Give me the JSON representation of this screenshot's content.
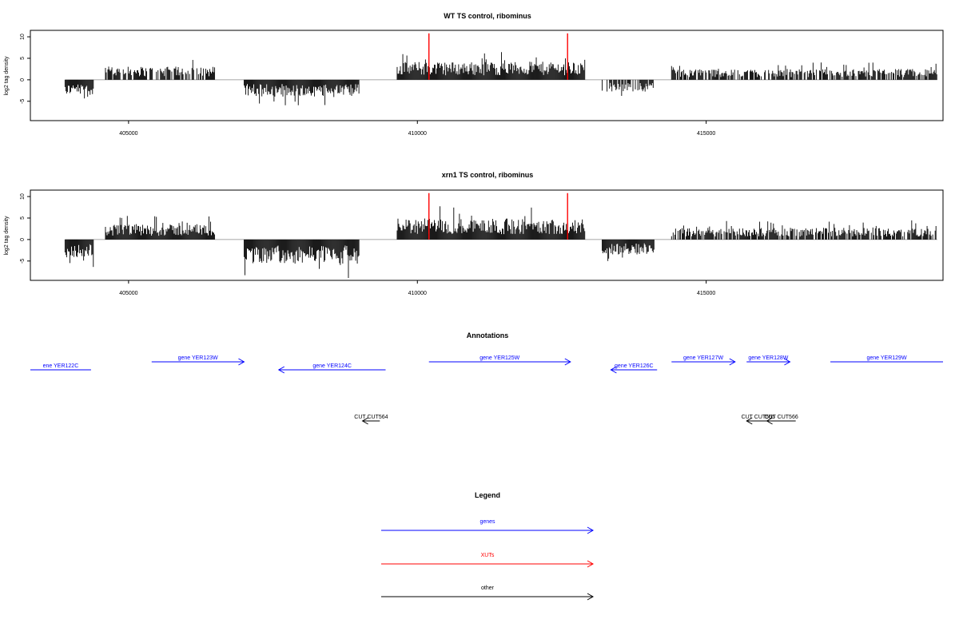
{
  "chart_data": [
    {
      "type": "bar",
      "title": "WT TS control, ribominus",
      "xlabel": "",
      "ylabel": "log2 tag density",
      "xlim": [
        403300,
        419100
      ],
      "ylim": [
        -9.5,
        11.5
      ],
      "xticks": [
        405000,
        410000,
        415000
      ],
      "yticks": [
        -5,
        0,
        5,
        10
      ],
      "series": [
        {
          "x": [
            403900,
            404400
          ],
          "values": [
            -2.5,
            -2.5
          ]
        },
        {
          "x": [
            404600,
            406500
          ],
          "values": [
            2.2,
            2.2
          ]
        },
        {
          "x": [
            407000,
            409000
          ],
          "values": [
            -2.8,
            -2.8
          ]
        },
        {
          "x": [
            409650,
            412900
          ],
          "values": [
            3.0,
            3.0
          ]
        },
        {
          "x": [
            413200,
            414100
          ],
          "values": [
            -2.0,
            -2.0
          ]
        },
        {
          "x": [
            414400,
            419000
          ],
          "values": [
            1.8,
            1.8
          ]
        }
      ],
      "highlights": [
        {
          "x": 410200,
          "value": 10.8,
          "color": "#ff0000"
        },
        {
          "x": 412600,
          "value": 10.8,
          "color": "#ff0000"
        }
      ]
    },
    {
      "type": "bar",
      "title": "xrn1 TS control, ribominus",
      "xlabel": "",
      "ylabel": "log2 tag density",
      "xlim": [
        403300,
        419100
      ],
      "ylim": [
        -9.5,
        11.5
      ],
      "xticks": [
        405000,
        410000,
        415000
      ],
      "yticks": [
        -5,
        0,
        5,
        10
      ],
      "series": [
        {
          "x": [
            403900,
            404400
          ],
          "values": [
            -3.0,
            -3.0
          ]
        },
        {
          "x": [
            404600,
            406500
          ],
          "values": [
            2.5,
            2.5
          ]
        },
        {
          "x": [
            407000,
            409000
          ],
          "values": [
            -4.0,
            -4.0
          ]
        },
        {
          "x": [
            409650,
            412900
          ],
          "values": [
            3.5,
            3.5
          ]
        },
        {
          "x": [
            413200,
            414100
          ],
          "values": [
            -2.5,
            -2.5
          ]
        },
        {
          "x": [
            414400,
            419000
          ],
          "values": [
            2.0,
            2.0
          ]
        }
      ],
      "highlights": [
        {
          "x": 410200,
          "value": 10.8,
          "color": "#ff0000"
        },
        {
          "x": 412600,
          "value": 10.8,
          "color": "#ff0000"
        }
      ]
    }
  ],
  "annotations": {
    "title": "Annotations",
    "genes_color": "#0000ff",
    "other_color": "#000000",
    "genes": [
      {
        "label": "ene YER122C",
        "start": 403300,
        "end": 404350,
        "direction": "none",
        "row": 1
      },
      {
        "label": "gene YER123W",
        "start": 405400,
        "end": 407000,
        "direction": "right",
        "row": 0
      },
      {
        "label": "gene YER124C",
        "start": 407600,
        "end": 409450,
        "direction": "left",
        "row": 1
      },
      {
        "label": "gene YER125W",
        "start": 410200,
        "end": 412650,
        "direction": "right",
        "row": 0
      },
      {
        "label": "gene YER126C",
        "start": 413350,
        "end": 414150,
        "direction": "left",
        "row": 1
      },
      {
        "label": "gene YER127W",
        "start": 414400,
        "end": 415500,
        "direction": "right",
        "row": 0
      },
      {
        "label": "gene YER128W",
        "start": 415700,
        "end": 416450,
        "direction": "right",
        "row": 0
      },
      {
        "label": "gene YER129W",
        "start": 417150,
        "end": 419100,
        "direction": "none",
        "row": 0
      }
    ],
    "others": [
      {
        "label": "CUT CUT564",
        "start": 409050,
        "end": 409350,
        "direction": "left",
        "row": 2
      },
      {
        "label": "CUT CUT565",
        "start": 415700,
        "end": 416100,
        "direction": "left",
        "row": 2
      },
      {
        "label": "CUT CUT566",
        "start": 416050,
        "end": 416550,
        "direction": "left",
        "row": 2
      }
    ]
  },
  "legend": {
    "title": "Legend",
    "items": [
      {
        "label": "genes",
        "color": "#0000ff"
      },
      {
        "label": "XUTs",
        "color": "#ff0000"
      },
      {
        "label": "other",
        "color": "#000000"
      }
    ]
  }
}
